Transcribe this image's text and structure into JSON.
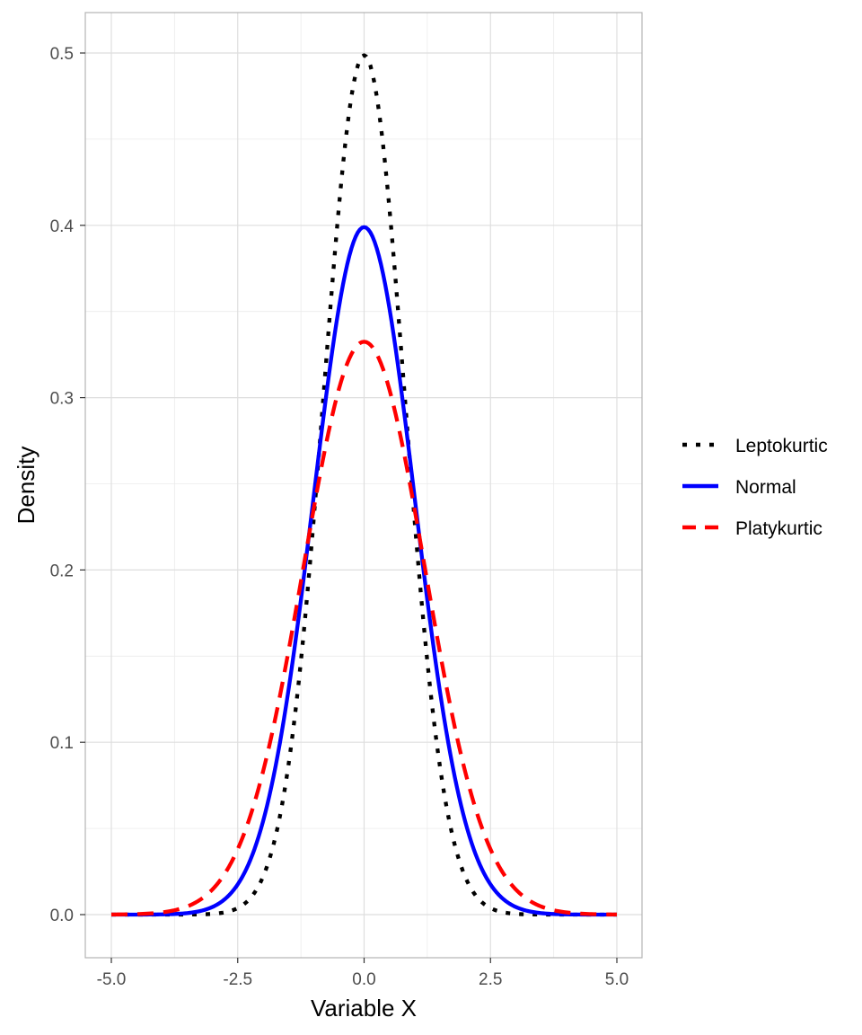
{
  "chart_data": {
    "type": "line",
    "xlabel": "Variable X",
    "ylabel": "Density",
    "xlim": [
      -5.0,
      5.0
    ],
    "ylim": [
      0.0,
      0.5
    ],
    "x_ticks": [
      "-5.0",
      "-2.5",
      "0.0",
      "2.5",
      "5.0"
    ],
    "y_ticks": [
      "0.0",
      "0.1",
      "0.2",
      "0.3",
      "0.4",
      "0.5"
    ],
    "grid": true,
    "legend_position": "right",
    "series": [
      {
        "name": "Leptokurtic",
        "color": "#000000",
        "line_style": "dotted",
        "distribution": "normal",
        "mean": 0,
        "sd": 0.8,
        "peak": 0.499
      },
      {
        "name": "Normal",
        "color": "#0000ff",
        "line_style": "solid",
        "distribution": "normal",
        "mean": 0,
        "sd": 1.0,
        "peak": 0.399
      },
      {
        "name": "Platykurtic",
        "color": "#ff0000",
        "line_style": "dashed",
        "distribution": "normal",
        "mean": 0,
        "sd": 1.2,
        "peak": 0.332
      }
    ]
  }
}
